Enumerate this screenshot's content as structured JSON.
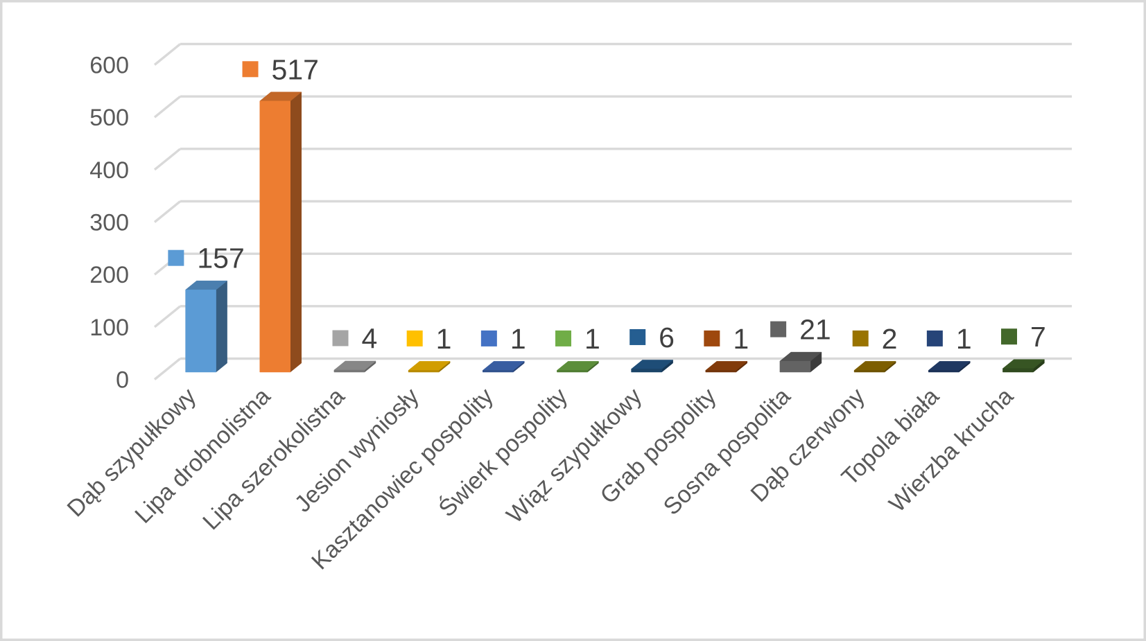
{
  "chart": {
    "background": "#ffffff",
    "frame_border_color": "#d9d9d9"
  },
  "chart_data": {
    "type": "bar",
    "style": "3d-column",
    "title": "",
    "xlabel": "",
    "ylabel": "",
    "categories": [
      "Dąb szypułkowy",
      "Lipa drobnolistna",
      "Lipa szerokolistna",
      "Jesion wyniosły",
      "Kasztanowiec pospolity",
      "Świerk pospolity",
      "Wiąz szypułkowy",
      "Grab pospolity",
      "Sosna pospolita",
      "Dąb czerwony",
      "Topola biała",
      "Wierzba krucha"
    ],
    "values": [
      157,
      517,
      4,
      1,
      1,
      1,
      6,
      1,
      21,
      2,
      1,
      7
    ],
    "point_colors": [
      "#5B9BD5",
      "#ED7D31",
      "#A5A5A5",
      "#FFC000",
      "#4472C4",
      "#70AD47",
      "#255E91",
      "#9E480E",
      "#636363",
      "#997300",
      "#264478",
      "#43682B"
    ],
    "data_labels": {
      "visible": true,
      "show_legend_key": true,
      "color": "#404040"
    },
    "y_axis": {
      "min": 0,
      "max": 600,
      "step": 100,
      "ticks": [
        0,
        100,
        200,
        300,
        400,
        500,
        600
      ],
      "label_color": "#595959"
    },
    "x_axis": {
      "label_rotation_deg": 45,
      "label_color": "#595959"
    },
    "gridlines": {
      "visible": true,
      "color": "#D9D9D9"
    },
    "legend": {
      "visible": false
    }
  }
}
